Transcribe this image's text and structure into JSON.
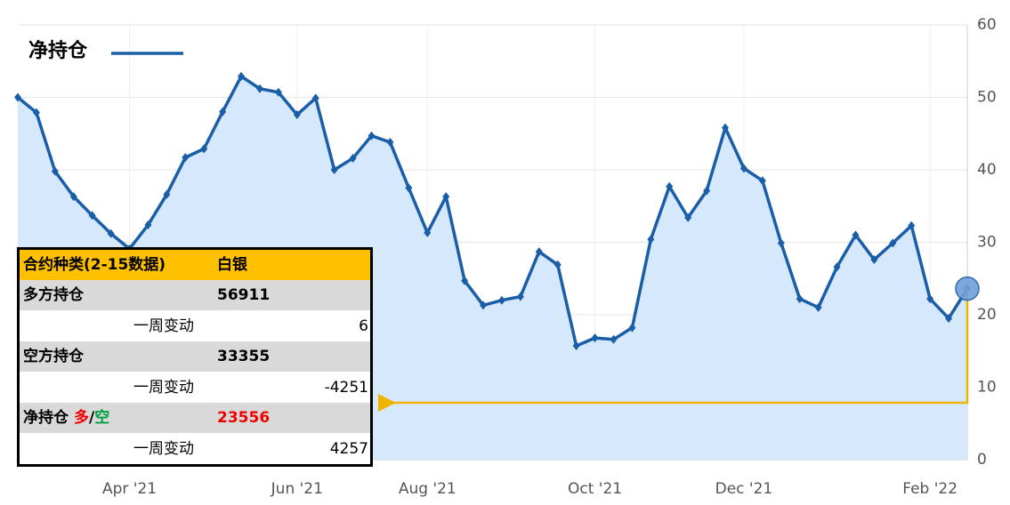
{
  "chart_data": {
    "type": "line",
    "categories": [
      null,
      null,
      null,
      null,
      null,
      null,
      "Apr '21",
      null,
      null,
      null,
      null,
      null,
      null,
      null,
      null,
      "Jun '21",
      null,
      null,
      null,
      null,
      null,
      null,
      "Aug '21",
      null,
      null,
      null,
      null,
      null,
      null,
      null,
      null,
      "Oct '21",
      null,
      null,
      null,
      null,
      null,
      null,
      null,
      "Dec '21",
      null,
      null,
      null,
      null,
      null,
      null,
      null,
      null,
      null,
      "Feb '22",
      null,
      null
    ],
    "series": [
      {
        "name": "净持仓",
        "color": "#1a5ea8",
        "values": [
          50.0,
          47.9,
          39.8,
          36.3,
          33.7,
          31.2,
          29.1,
          32.4,
          36.6,
          41.7,
          42.9,
          48.0,
          52.9,
          51.2,
          50.7,
          47.6,
          49.9,
          40.0,
          41.6,
          44.7,
          43.8,
          37.5,
          31.3,
          36.3,
          24.7,
          21.3,
          22.0,
          22.5,
          28.7,
          26.9,
          15.7,
          16.8,
          16.6,
          18.2,
          30.4,
          37.7,
          33.4,
          37.1,
          45.8,
          40.2,
          38.5,
          29.9,
          22.2,
          21.0,
          26.6,
          31.0,
          27.6,
          29.9,
          32.3,
          22.2,
          19.5,
          23.6
        ]
      }
    ],
    "ylim": [
      0,
      60
    ],
    "yticks": [
      0,
      10,
      20,
      30,
      40,
      50,
      60
    ],
    "grid": true,
    "legend": "top-left"
  },
  "table": {
    "header": [
      "合约种类(2-15数据)",
      "白银"
    ],
    "rows": [
      [
        "多方持仓",
        "56911"
      ],
      [
        "一周变动",
        "6"
      ],
      [
        "空方持仓",
        "33355"
      ],
      [
        "一周变动",
        "-4251"
      ],
      [
        [
          "净持仓",
          "多",
          "/",
          "空"
        ],
        "23556"
      ],
      [
        "一周变动",
        "4257"
      ]
    ]
  }
}
